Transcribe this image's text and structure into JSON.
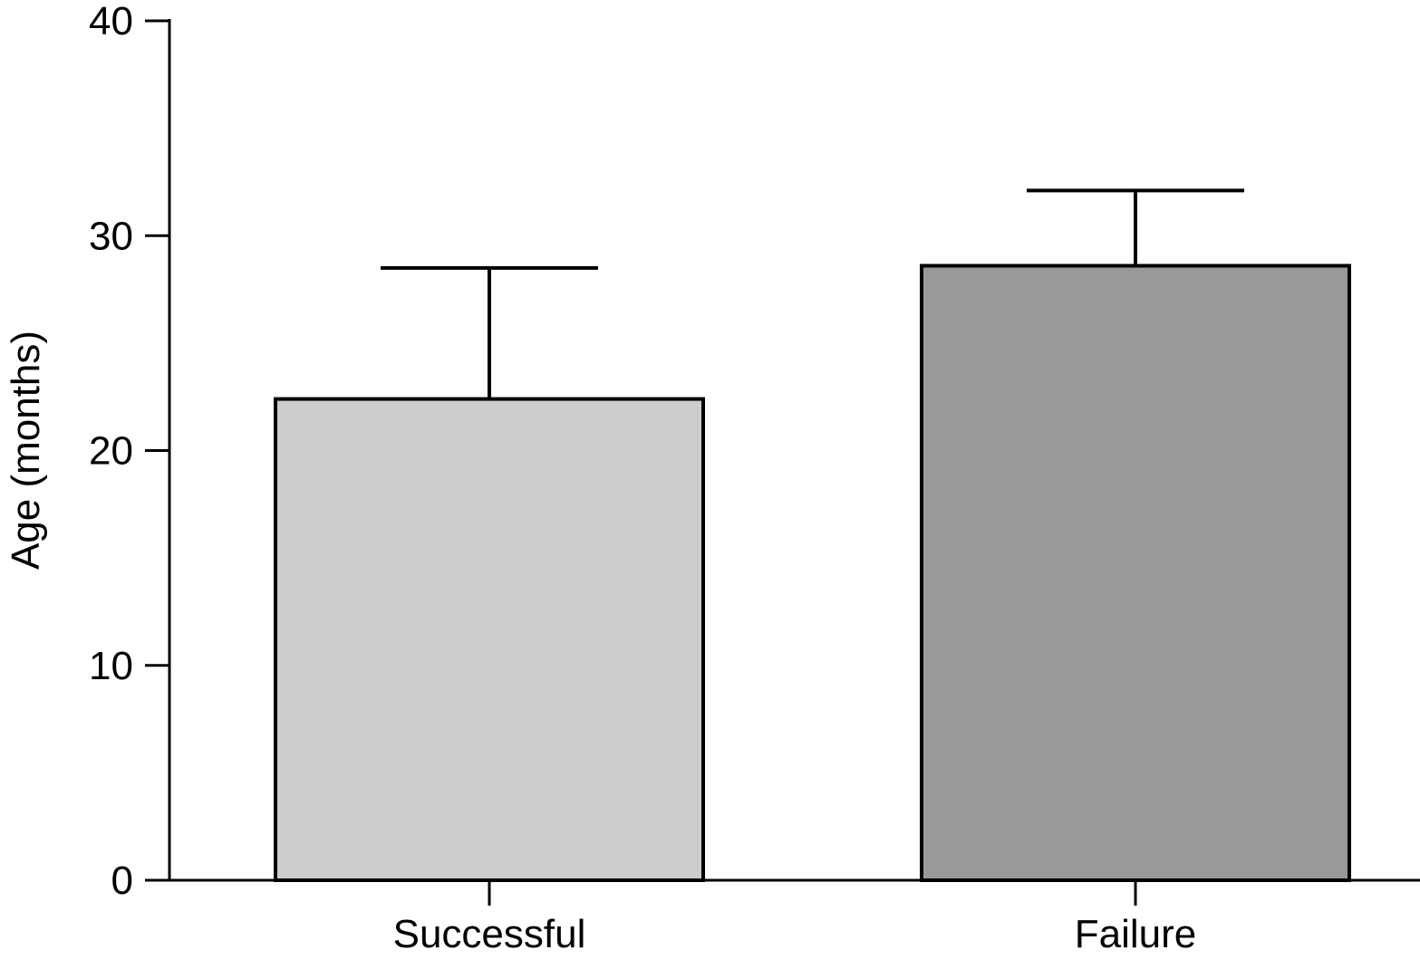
{
  "chart_data": {
    "type": "bar",
    "title": "",
    "xlabel": "",
    "ylabel": "Age (months)",
    "ylim": [
      0,
      40
    ],
    "yticks": [
      0,
      10,
      20,
      30,
      40
    ],
    "grid": false,
    "categories": [
      "Successful",
      "Failure"
    ],
    "values": [
      22.4,
      28.6
    ],
    "error_upper": [
      28.5,
      32.1
    ],
    "colors": [
      "#cccccc",
      "#999999"
    ],
    "edge_color": "#000000"
  }
}
